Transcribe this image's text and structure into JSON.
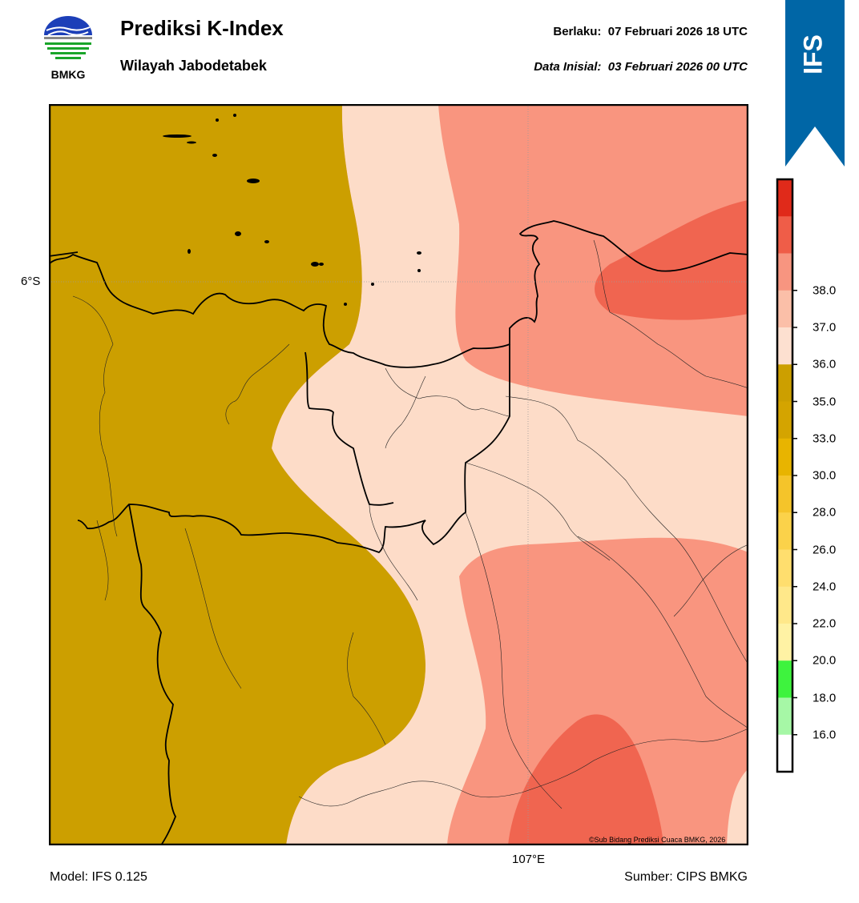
{
  "header": {
    "title": "Prediksi K-Index",
    "subtitle": "Wilayah Jabodetabek",
    "valid_label": "Berlaku:",
    "valid_time": "07 Februari 2026 18 UTC",
    "init_label": "Data Inisial:",
    "init_time": "03 Februari 2026 00 UTC"
  },
  "logo": {
    "text": "BMKG",
    "icon": "bmkg-logo-icon"
  },
  "ribbon": {
    "text": "IFS",
    "color": "#0066a6"
  },
  "map": {
    "lat_label": "6°S",
    "lon_label": "107°E",
    "credit": "©Sub Bidang Prediksi Cuaca BMKG, 2026"
  },
  "footer": {
    "model": "Model: IFS 0.125",
    "source": "Sumber: CIPS BMKG"
  },
  "colorbar": {
    "ticks": [
      "16.0",
      "18.0",
      "20.0",
      "22.0",
      "24.0",
      "26.0",
      "28.0",
      "30.0",
      "33.0",
      "35.0",
      "36.0",
      "37.0",
      "38.0"
    ],
    "colors": [
      "#ffffff",
      "#a6f7a6",
      "#3ef33e",
      "#fff2a4",
      "#ffe88a",
      "#ffde6e",
      "#fbd24a",
      "#f5c42a",
      "#e8b400",
      "#d4a400",
      "#cc9f00",
      "#fde0d0",
      "#fbbfa8",
      "#f79580",
      "#ef5d48",
      "#e02a1a"
    ]
  },
  "legend_colors": {
    "k_below_35": "#cc9f00",
    "k_35_36": "#fddcc8",
    "k_36_37": "#f9957f",
    "k_37_38": "#f06550"
  }
}
